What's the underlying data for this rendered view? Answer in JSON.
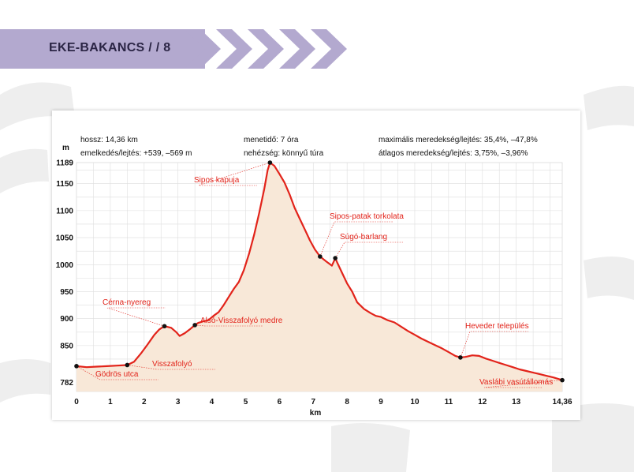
{
  "header": {
    "title": "EKE-BAKANCS / /  8"
  },
  "colors": {
    "accent": "#b3a9cf",
    "profile_line": "#e2231a",
    "profile_fill": "#f8e8d8"
  },
  "info": {
    "length": "hossz: 14,36 km",
    "elevation": "emelkedés/lejtés: +539, –569 m",
    "time": "menetidő: 7 óra",
    "difficulty": "nehézség: könnyű túra",
    "max_grade": "maximális meredekség/lejtés: 35,4%, –47,8%",
    "avg_grade": "átlagos meredekség/lejtés: 3,75%, –3,96%"
  },
  "chart_data": {
    "type": "area",
    "xlabel": "km",
    "ylabel": "m",
    "xlim": [
      0,
      14.36
    ],
    "ylim": [
      765,
      1189
    ],
    "x_ticks": [
      0,
      1,
      2,
      3,
      4,
      5,
      6,
      7,
      8,
      9,
      10,
      11,
      12,
      13,
      14.36
    ],
    "x_tick_labels": [
      "0",
      "1",
      "2",
      "3",
      "4",
      "5",
      "6",
      "7",
      "8",
      "9",
      "10",
      "11",
      "12",
      "13",
      "14,36"
    ],
    "y_ticks": [
      782,
      850,
      900,
      950,
      1000,
      1050,
      1100,
      1150,
      1189
    ],
    "y_tick_labels": [
      "782",
      "850",
      "900",
      "950",
      "1000",
      "1050",
      "1100",
      "1150",
      "1189"
    ],
    "grid": true,
    "profile": [
      [
        0,
        812
      ],
      [
        0.3,
        810
      ],
      [
        0.6,
        811
      ],
      [
        0.9,
        812
      ],
      [
        1.2,
        813
      ],
      [
        1.5,
        814
      ],
      [
        1.7,
        820
      ],
      [
        1.9,
        835
      ],
      [
        2.1,
        852
      ],
      [
        2.3,
        870
      ],
      [
        2.45,
        880
      ],
      [
        2.6,
        886
      ],
      [
        2.8,
        883
      ],
      [
        2.95,
        875
      ],
      [
        3.05,
        868
      ],
      [
        3.2,
        873
      ],
      [
        3.35,
        880
      ],
      [
        3.5,
        888
      ],
      [
        3.6,
        892
      ],
      [
        3.75,
        895
      ],
      [
        3.9,
        897
      ],
      [
        4.05,
        905
      ],
      [
        4.2,
        912
      ],
      [
        4.35,
        925
      ],
      [
        4.5,
        940
      ],
      [
        4.65,
        955
      ],
      [
        4.8,
        968
      ],
      [
        4.95,
        990
      ],
      [
        5.1,
        1020
      ],
      [
        5.25,
        1055
      ],
      [
        5.4,
        1095
      ],
      [
        5.55,
        1140
      ],
      [
        5.65,
        1175
      ],
      [
        5.72,
        1189
      ],
      [
        5.85,
        1183
      ],
      [
        6.0,
        1168
      ],
      [
        6.15,
        1152
      ],
      [
        6.3,
        1130
      ],
      [
        6.45,
        1105
      ],
      [
        6.6,
        1085
      ],
      [
        6.75,
        1065
      ],
      [
        6.9,
        1045
      ],
      [
        7.05,
        1028
      ],
      [
        7.2,
        1015
      ],
      [
        7.4,
        1005
      ],
      [
        7.55,
        998
      ],
      [
        7.65,
        1012
      ],
      [
        7.72,
        1002
      ],
      [
        7.85,
        985
      ],
      [
        8.0,
        965
      ],
      [
        8.15,
        950
      ],
      [
        8.3,
        930
      ],
      [
        8.5,
        918
      ],
      [
        8.7,
        910
      ],
      [
        8.85,
        905
      ],
      [
        9.0,
        903
      ],
      [
        9.2,
        897
      ],
      [
        9.4,
        893
      ],
      [
        9.6,
        885
      ],
      [
        9.8,
        877
      ],
      [
        10.0,
        870
      ],
      [
        10.2,
        863
      ],
      [
        10.4,
        857
      ],
      [
        10.6,
        851
      ],
      [
        10.8,
        845
      ],
      [
        11.0,
        838
      ],
      [
        11.2,
        831
      ],
      [
        11.35,
        828
      ],
      [
        11.5,
        829
      ],
      [
        11.7,
        832
      ],
      [
        11.9,
        831
      ],
      [
        12.1,
        826
      ],
      [
        12.3,
        822
      ],
      [
        12.5,
        818
      ],
      [
        12.7,
        814
      ],
      [
        12.9,
        810
      ],
      [
        13.1,
        806
      ],
      [
        13.3,
        803
      ],
      [
        13.5,
        800
      ],
      [
        13.7,
        797
      ],
      [
        13.9,
        794
      ],
      [
        14.1,
        791
      ],
      [
        14.36,
        786
      ]
    ],
    "waypoints": [
      {
        "name": "Gödrös utca",
        "x": 0,
        "y": 812
      },
      {
        "name": "Visszafolyó",
        "x": 1.5,
        "y": 814
      },
      {
        "name": "Cérna-nyereg",
        "x": 2.6,
        "y": 886
      },
      {
        "name": "Alsó-Visszafolyó medre",
        "x": 3.5,
        "y": 888
      },
      {
        "name": "Sipos kapuja",
        "x": 5.72,
        "y": 1189
      },
      {
        "name": "Sipos-patak torkolata",
        "x": 7.2,
        "y": 1015
      },
      {
        "name": "Súgó-barlang",
        "x": 7.65,
        "y": 1012
      },
      {
        "name": "Heveder település",
        "x": 11.35,
        "y": 828
      },
      {
        "name": "Vaslábi vasútállomás",
        "x": 14.36,
        "y": 786
      }
    ]
  }
}
